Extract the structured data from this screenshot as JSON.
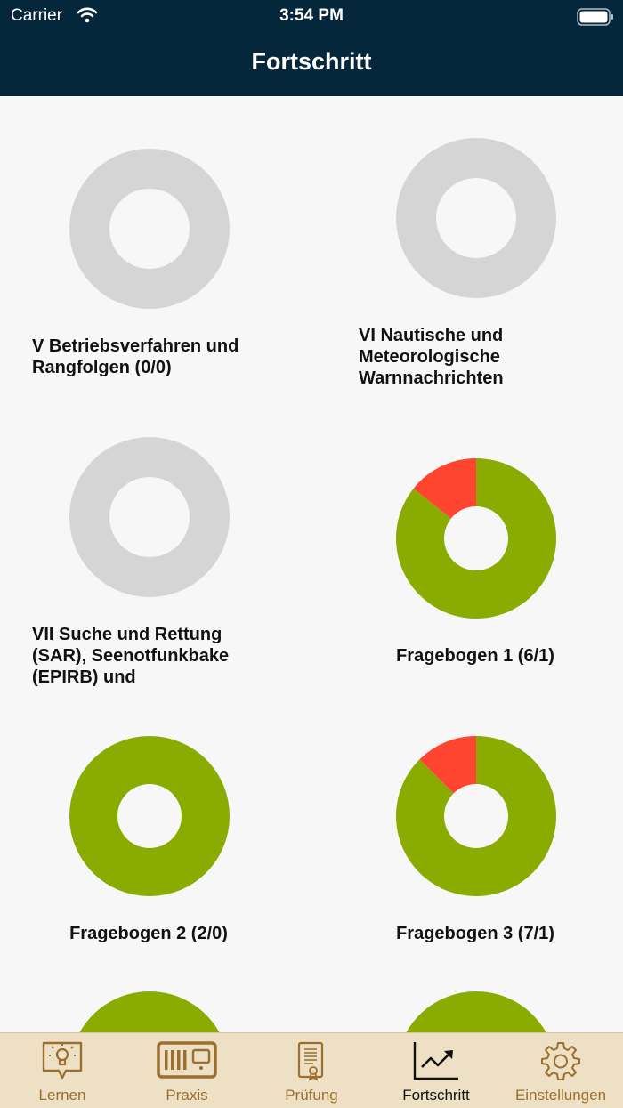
{
  "status_bar": {
    "carrier": "Carrier",
    "time": "3:54 PM"
  },
  "nav": {
    "title": "Fortschritt"
  },
  "colors": {
    "correct": "#8aab00",
    "wrong": "#ff4530",
    "empty": "#d5d5d5",
    "hole": "#f7f7f7",
    "nav": "#04273c",
    "tabbar": "#eee0c5",
    "tab_inactive": "#9a6f2f"
  },
  "progress_items": [
    {
      "label": "V Betriebsverfahren und\nRangfolgen (0/0)",
      "correct_fraction": null,
      "wrong_fraction": null
    },
    {
      "label": "VI Nautische und\nMeteorologische\nWarnnachrichten",
      "correct_fraction": null,
      "wrong_fraction": null
    },
    {
      "label": "VII Suche und Rettung\n(SAR), Seenotfunkbake\n(EPIRB) und",
      "correct_fraction": null,
      "wrong_fraction": null
    },
    {
      "label": "Fragebogen 1 (6/1)",
      "correct_fraction": 0.857,
      "wrong_fraction": 0.143
    },
    {
      "label": "Fragebogen 2 (2/0)",
      "correct_fraction": 1.0,
      "wrong_fraction": 0.0
    },
    {
      "label": "Fragebogen 3 (7/1)",
      "correct_fraction": 0.875,
      "wrong_fraction": 0.125
    },
    {
      "label": "",
      "correct_fraction": 1.0,
      "wrong_fraction": 0.0
    },
    {
      "label": "",
      "correct_fraction": 1.0,
      "wrong_fraction": 0.0
    }
  ],
  "tabs": [
    {
      "label": "Lernen",
      "icon": "lightbulb-speech-icon",
      "active": false
    },
    {
      "label": "Praxis",
      "icon": "radio-icon",
      "active": false
    },
    {
      "label": "Prüfung",
      "icon": "certificate-icon",
      "active": false
    },
    {
      "label": "Fortschritt",
      "icon": "chart-trend-icon",
      "active": true
    },
    {
      "label": "Einstellungen",
      "icon": "gear-icon",
      "active": false
    }
  ]
}
